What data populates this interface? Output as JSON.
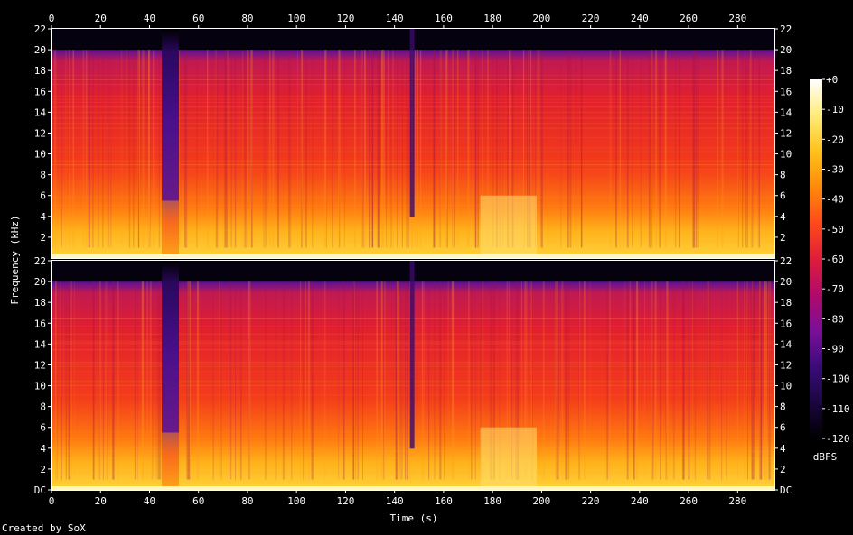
{
  "chart_data": {
    "type": "heatmap",
    "xlabel": "Time (s)",
    "ylabel": "Frequency (kHz)",
    "colorbar_label": "dBFS",
    "footer": "Created by SoX",
    "x_ticks": [
      "0",
      "20",
      "40",
      "60",
      "80",
      "100",
      "120",
      "140",
      "160",
      "180",
      "200",
      "220",
      "240",
      "260",
      "280"
    ],
    "x_range": [
      0,
      295
    ],
    "channels": [
      {
        "y_ticks": [
          "22",
          "20",
          "18",
          "16",
          "14",
          "12",
          "10",
          "8",
          "6",
          "4",
          "2"
        ]
      },
      {
        "y_ticks": [
          "22",
          "20",
          "18",
          "16",
          "14",
          "12",
          "10",
          "8",
          "6",
          "4",
          "2",
          "DC"
        ]
      }
    ],
    "y_range_khz": [
      0,
      22
    ],
    "colorbar_ticks": [
      "+0",
      "-10",
      "-20",
      "-30",
      "-40",
      "-50",
      "-60",
      "-70",
      "-80",
      "-90",
      "-100",
      "-110",
      "-120"
    ],
    "colorbar_range_dbfs": [
      -120,
      0
    ],
    "colormap": [
      "#000000",
      "#1a0640",
      "#3b0b7a",
      "#7a0f9a",
      "#b00a6b",
      "#e01d3a",
      "#ff4a1a",
      "#ff8a0a",
      "#ffc21a",
      "#ffec7a",
      "#ffffff"
    ],
    "features": {
      "quiet_gap_s": [
        45,
        52
      ],
      "quiet_gap_top_khz": 5.5,
      "bright_block_s": [
        175,
        198
      ],
      "bright_block_top_khz": 6,
      "dip_s": 147,
      "lowpass_khz": 20
    }
  }
}
